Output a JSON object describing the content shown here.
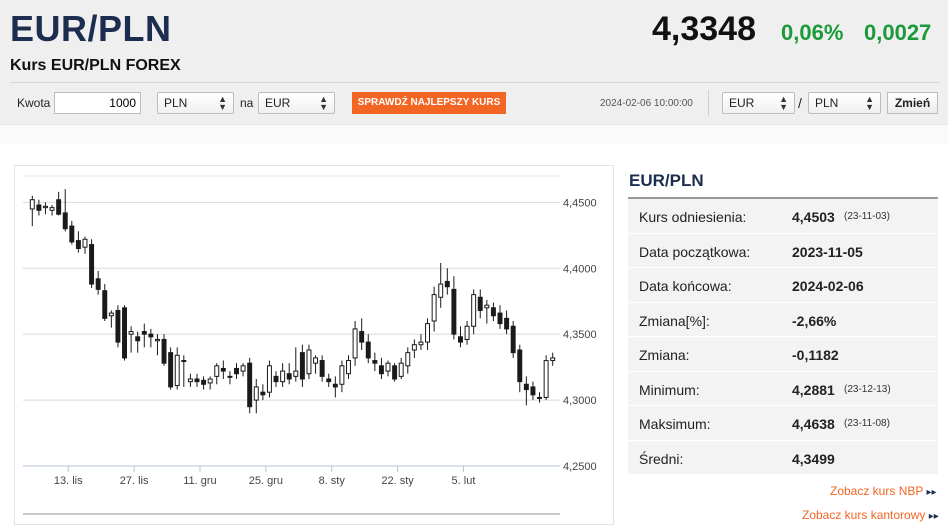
{
  "header": {
    "title": "EUR/PLN",
    "subtitle": "Kurs EUR/PLN FOREX",
    "rate": "4,3348",
    "change_pct": "0,06%",
    "change_abs": "0,0027",
    "change_color": "#1a9a3a"
  },
  "converter": {
    "amount_label": "Kwota",
    "amount_value": "1000",
    "from_currency": "PLN",
    "to_label": "na",
    "to_currency": "EUR",
    "best_rate_button": "SPRAWDŹ NAJLEPSZY KURS",
    "timestamp": "2024-02-06 10:00:00",
    "pair_base": "EUR",
    "pair_sep": "/",
    "pair_quote": "PLN",
    "change_button": "Zmień",
    "accent": "#f26522"
  },
  "chart_data": {
    "type": "candlestick",
    "x_ticks": [
      "13. lis",
      "27. lis",
      "11. gru",
      "25. gru",
      "8. sty",
      "22. sty",
      "5. lut"
    ],
    "y_ticks": [
      "4,4500",
      "4,4000",
      "4,3500",
      "4,3000",
      "4,2500"
    ],
    "ylim": [
      4.25,
      4.47
    ],
    "grid": true,
    "candles": [
      [
        4.445,
        4.455,
        4.432,
        4.452
      ],
      [
        4.448,
        4.452,
        4.44,
        4.444
      ],
      [
        4.446,
        4.45,
        4.441,
        4.447
      ],
      [
        4.444,
        4.448,
        4.44,
        4.446
      ],
      [
        4.452,
        4.458,
        4.44,
        4.441
      ],
      [
        4.442,
        4.46,
        4.428,
        4.43
      ],
      [
        4.432,
        4.436,
        4.418,
        4.42
      ],
      [
        4.421,
        4.428,
        4.412,
        4.415
      ],
      [
        4.416,
        4.424,
        4.411,
        4.422
      ],
      [
        4.418,
        4.422,
        4.385,
        4.388
      ],
      [
        4.392,
        4.398,
        4.38,
        4.384
      ],
      [
        4.383,
        4.388,
        4.36,
        4.362
      ],
      [
        4.364,
        4.368,
        4.355,
        4.366
      ],
      [
        4.368,
        4.372,
        4.34,
        4.344
      ],
      [
        4.37,
        4.372,
        4.33,
        4.332
      ],
      [
        4.35,
        4.356,
        4.336,
        4.352
      ],
      [
        4.348,
        4.352,
        4.336,
        4.345
      ],
      [
        4.352,
        4.358,
        4.34,
        4.35
      ],
      [
        4.35,
        4.354,
        4.34,
        4.348
      ],
      [
        4.345,
        4.35,
        4.334,
        4.346
      ],
      [
        4.346,
        4.35,
        4.326,
        4.328
      ],
      [
        4.336,
        4.34,
        4.308,
        4.31
      ],
      [
        4.311,
        4.34,
        4.308,
        4.334
      ],
      [
        4.33,
        4.334,
        4.31,
        4.33
      ],
      [
        4.314,
        4.32,
        4.31,
        4.316
      ],
      [
        4.316,
        4.32,
        4.31,
        4.314
      ],
      [
        4.315,
        4.318,
        4.308,
        4.312
      ],
      [
        4.313,
        4.318,
        4.308,
        4.316
      ],
      [
        4.318,
        4.328,
        4.312,
        4.326
      ],
      [
        4.324,
        4.33,
        4.316,
        4.322
      ],
      [
        4.318,
        4.322,
        4.312,
        4.318
      ],
      [
        4.324,
        4.328,
        4.316,
        4.32
      ],
      [
        4.322,
        4.328,
        4.318,
        4.326
      ],
      [
        4.328,
        4.332,
        4.29,
        4.295
      ],
      [
        4.3,
        4.316,
        4.29,
        4.31
      ],
      [
        4.306,
        4.312,
        4.3,
        4.304
      ],
      [
        4.306,
        4.33,
        4.302,
        4.326
      ],
      [
        4.318,
        4.322,
        4.31,
        4.314
      ],
      [
        4.314,
        4.328,
        4.31,
        4.322
      ],
      [
        4.32,
        4.328,
        4.312,
        4.316
      ],
      [
        4.318,
        4.34,
        4.314,
        4.322
      ],
      [
        4.336,
        4.342,
        4.31,
        4.316
      ],
      [
        4.32,
        4.342,
        4.316,
        4.338
      ],
      [
        4.328,
        4.334,
        4.32,
        4.332
      ],
      [
        4.33,
        4.334,
        4.314,
        4.318
      ],
      [
        4.316,
        4.32,
        4.31,
        4.314
      ],
      [
        4.312,
        4.318,
        4.302,
        4.31
      ],
      [
        4.312,
        4.33,
        4.306,
        4.326
      ],
      [
        4.32,
        4.334,
        4.316,
        4.33
      ],
      [
        4.332,
        4.36,
        4.326,
        4.354
      ],
      [
        4.352,
        4.362,
        4.338,
        4.344
      ],
      [
        4.344,
        4.35,
        4.328,
        4.332
      ],
      [
        4.33,
        4.336,
        4.322,
        4.328
      ],
      [
        4.326,
        4.332,
        4.316,
        4.32
      ],
      [
        4.322,
        4.33,
        4.318,
        4.328
      ],
      [
        4.326,
        4.328,
        4.314,
        4.316
      ],
      [
        4.318,
        4.332,
        4.316,
        4.328
      ],
      [
        4.326,
        4.34,
        4.32,
        4.336
      ],
      [
        4.338,
        4.346,
        4.332,
        4.342
      ],
      [
        4.342,
        4.35,
        4.338,
        4.344
      ],
      [
        4.344,
        4.362,
        4.338,
        4.358
      ],
      [
        4.36,
        4.386,
        4.352,
        4.38
      ],
      [
        4.378,
        4.404,
        4.37,
        4.388
      ],
      [
        4.39,
        4.4,
        4.38,
        4.386
      ],
      [
        4.384,
        4.394,
        4.346,
        4.35
      ],
      [
        4.348,
        4.356,
        4.34,
        4.344
      ],
      [
        4.346,
        4.36,
        4.342,
        4.356
      ],
      [
        4.356,
        4.384,
        4.35,
        4.38
      ],
      [
        4.378,
        4.384,
        4.362,
        4.368
      ],
      [
        4.37,
        4.376,
        4.358,
        4.372
      ],
      [
        4.37,
        4.374,
        4.36,
        4.364
      ],
      [
        4.366,
        4.372,
        4.354,
        4.358
      ],
      [
        4.362,
        4.368,
        4.35,
        4.354
      ],
      [
        4.356,
        4.36,
        4.332,
        4.336
      ],
      [
        4.338,
        4.342,
        4.306,
        4.314
      ],
      [
        4.312,
        4.318,
        4.296,
        4.308
      ],
      [
        4.31,
        4.314,
        4.3,
        4.304
      ],
      [
        4.302,
        4.306,
        4.298,
        4.302
      ],
      [
        4.302,
        4.334,
        4.3,
        4.33
      ],
      [
        4.33,
        4.336,
        4.326,
        4.332
      ]
    ]
  },
  "sidebar": {
    "title": "EUR/PLN",
    "rows": [
      {
        "key": "Kurs odniesienia:",
        "value": "4,4503",
        "date": "(23-11-03)"
      },
      {
        "key": "Data początkowa:",
        "value": "2023-11-05",
        "date": ""
      },
      {
        "key": "Data końcowa:",
        "value": "2024-02-06",
        "date": ""
      },
      {
        "key": "Zmiana[%]:",
        "value": "-2,66%",
        "date": ""
      },
      {
        "key": "Zmiana:",
        "value": "-0,1182",
        "date": ""
      },
      {
        "key": "Minimum:",
        "value": "4,2881",
        "date": "(23-12-13)"
      },
      {
        "key": "Maksimum:",
        "value": "4,4638",
        "date": "(23-11-08)"
      },
      {
        "key": "Średni:",
        "value": "4,3499",
        "date": ""
      }
    ],
    "link_nbp": "Zobacz kurs NBP",
    "link_arrow": "▸▸",
    "link_kantor": "Zobacz kurs kantorowy"
  }
}
